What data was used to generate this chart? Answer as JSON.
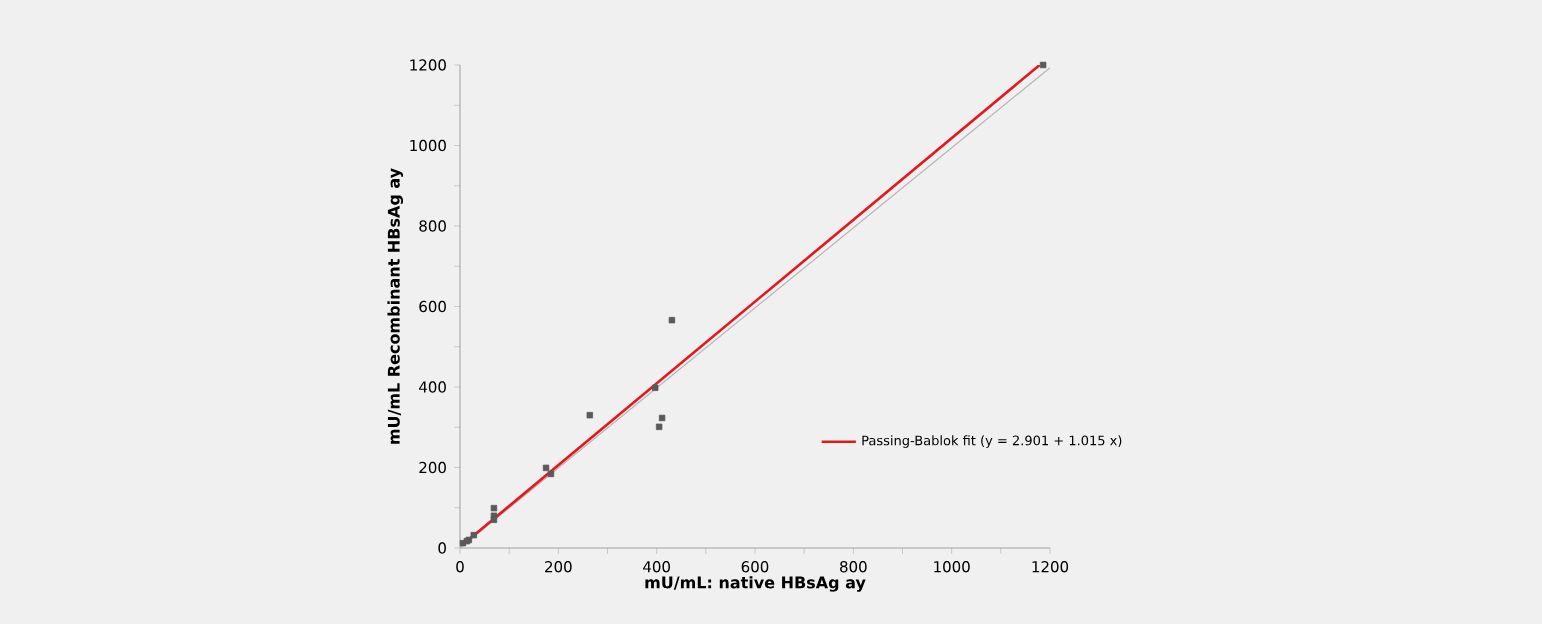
{
  "chart_data": {
    "type": "scatter",
    "xlabel": "mU/mL: native HBsAg ay",
    "ylabel": "mU/mL Recombinant HBsAg ay",
    "xlim": [
      0,
      1200
    ],
    "ylim": [
      0,
      1200
    ],
    "xticks": [
      0,
      {
        "value": 100,
        "label": null
      },
      200,
      {
        "value": 300,
        "label": null
      },
      400,
      {
        "value": 500,
        "label": null
      },
      600,
      {
        "value": 700,
        "label": null
      },
      800,
      {
        "value": 900,
        "label": null
      },
      1000,
      {
        "value": 1100,
        "label": null
      },
      1200
    ],
    "yticks": [
      0,
      {
        "value": 100,
        "label": null
      },
      200,
      {
        "value": 300,
        "label": null
      },
      400,
      {
        "value": 500,
        "label": null
      },
      600,
      {
        "value": 700,
        "label": null
      },
      800,
      {
        "value": 900,
        "label": null
      },
      1000,
      {
        "value": 1100,
        "label": null
      },
      1200
    ],
    "grid": false,
    "legend": "right",
    "series": [
      {
        "type": "line",
        "color": "#b4b4b4",
        "x": [
          0,
          1200
        ],
        "values": [
          0,
          1193
        ]
      },
      {
        "type": "line",
        "name": "Passing-Bablok fit (y = 2.901 + 1.015 x)",
        "color": "#e3181c",
        "x": [
          15,
          1179
        ],
        "values": [
          18,
          1200
        ]
      },
      {
        "marker": "square",
        "color": "#595959",
        "x": [
          1186,
          431,
          397,
          411,
          405,
          264,
          175,
          185,
          69,
          69,
          69,
          28,
          18,
          12,
          6,
          14
        ],
        "values": [
          1200,
          566,
          398,
          323,
          301,
          330,
          199,
          184,
          99,
          80,
          70,
          32,
          20,
          null,
          12,
          17
        ]
      }
    ]
  }
}
